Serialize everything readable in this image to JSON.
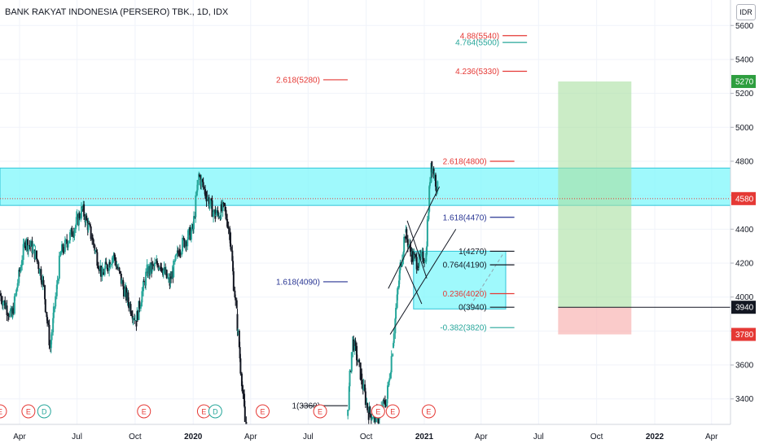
{
  "header": {
    "title": "BANK RAKYAT INDONESIA (PERSERO) TBK., 1D, IDX",
    "currency_badge": "IDR"
  },
  "colors": {
    "up": "#26a69a",
    "down": "#131722",
    "zone": "#7ff7fb",
    "zone_edge": "#30c4d8",
    "target": "#a8dfa0",
    "stop": "#f8b9b8",
    "fib_red": "#e53935",
    "fib_green": "#26a69a",
    "fib_blue": "#283593",
    "price_green": "#2e9e3f",
    "price_red": "#e53935",
    "price_dark": "#131722"
  },
  "chart_data": {
    "type": "candlestick",
    "title": "BANK RAKYAT INDONESIA (PERSERO) TBK., 1D, IDX",
    "ylim": [
      3250,
      5750
    ],
    "x_range": [
      "2019-03-01",
      "2022-05-01"
    ],
    "y_ticks": [
      3400,
      3600,
      3800,
      4000,
      4200,
      4400,
      4600,
      4800,
      5000,
      5200,
      5400,
      5600
    ],
    "x_ticks": [
      {
        "date": "2019-04-01",
        "label": "Apr",
        "bold": false
      },
      {
        "date": "2019-07-01",
        "label": "Jul",
        "bold": false
      },
      {
        "date": "2019-10-01",
        "label": "Oct",
        "bold": false
      },
      {
        "date": "2020-01-01",
        "label": "2020",
        "bold": true
      },
      {
        "date": "2020-04-01",
        "label": "Apr",
        "bold": false
      },
      {
        "date": "2020-07-01",
        "label": "Jul",
        "bold": false
      },
      {
        "date": "2020-10-01",
        "label": "Oct",
        "bold": false
      },
      {
        "date": "2021-01-01",
        "label": "2021",
        "bold": true
      },
      {
        "date": "2021-04-01",
        "label": "Apr",
        "bold": false
      },
      {
        "date": "2021-07-01",
        "label": "Jul",
        "bold": false
      },
      {
        "date": "2021-10-01",
        "label": "Oct",
        "bold": false
      },
      {
        "date": "2022-01-01",
        "label": "2022",
        "bold": true
      },
      {
        "date": "2022-04-01",
        "label": "Apr",
        "bold": false
      }
    ],
    "price_path": [
      [
        "2019-03-01",
        4020
      ],
      [
        "2019-03-20",
        3880
      ],
      [
        "2019-04-10",
        4330
      ],
      [
        "2019-04-24",
        4280
      ],
      [
        "2019-05-08",
        4100
      ],
      [
        "2019-05-20",
        3700
      ],
      [
        "2019-06-05",
        4250
      ],
      [
        "2019-06-25",
        4390
      ],
      [
        "2019-07-10",
        4520
      ],
      [
        "2019-07-25",
        4350
      ],
      [
        "2019-08-10",
        4130
      ],
      [
        "2019-08-28",
        4250
      ],
      [
        "2019-09-15",
        4030
      ],
      [
        "2019-10-03",
        3860
      ],
      [
        "2019-10-20",
        4150
      ],
      [
        "2019-11-10",
        4200
      ],
      [
        "2019-11-25",
        4080
      ],
      [
        "2019-12-10",
        4280
      ],
      [
        "2020-01-01",
        4400
      ],
      [
        "2020-01-10",
        4720
      ],
      [
        "2020-01-22",
        4600
      ],
      [
        "2020-02-05",
        4480
      ],
      [
        "2020-02-20",
        4520
      ],
      [
        "2020-02-28",
        4380
      ],
      [
        "2020-03-10",
        3900
      ],
      [
        "2020-03-25",
        3200
      ]
    ],
    "price_path_2": [
      [
        "2020-09-01",
        3300
      ],
      [
        "2020-09-10",
        3750
      ],
      [
        "2020-09-22",
        3550
      ],
      [
        "2020-10-05",
        3320
      ],
      [
        "2020-10-20",
        3290
      ],
      [
        "2020-11-03",
        3400
      ],
      [
        "2020-11-12",
        3700
      ],
      [
        "2020-11-22",
        4100
      ],
      [
        "2020-12-02",
        4380
      ],
      [
        "2020-12-12",
        4250
      ],
      [
        "2020-12-22",
        4200
      ],
      [
        "2021-01-04",
        4250
      ],
      [
        "2021-01-12",
        4800
      ],
      [
        "2021-01-22",
        4640
      ]
    ],
    "resistance_zone": {
      "from": "2019-03-01",
      "to": "2022-05-01",
      "low": 4540,
      "high": 4760
    },
    "demand_zone": {
      "from": "2020-12-15",
      "to": "2021-05-10",
      "low": 3930,
      "high": 4270
    },
    "target_box": {
      "from": "2021-08-01",
      "to": "2021-11-25",
      "low": 3940,
      "high": 5270
    },
    "stop_box": {
      "from": "2021-08-01",
      "to": "2021-11-25",
      "low": 3780,
      "high": 3940
    },
    "fib_labels": [
      {
        "text": "2.618(5280)",
        "price": 5280,
        "date": "2020-07-25",
        "color": "fib_red"
      },
      {
        "text": "1.618(4090)",
        "price": 4090,
        "date": "2020-07-25",
        "color": "fib_blue"
      },
      {
        "text": "1(3360)",
        "price": 3360,
        "date": "2020-07-25",
        "color": "down"
      },
      {
        "text": "4.88(5540)",
        "price": 5540,
        "date": "2021-05-05",
        "color": "fib_red"
      },
      {
        "text": "4.764(5500)",
        "price": 5500,
        "date": "2021-05-05",
        "color": "fib_green"
      },
      {
        "text": "4.236(5330)",
        "price": 5330,
        "date": "2021-05-05",
        "color": "fib_red"
      },
      {
        "text": "2.618(4800)",
        "price": 4800,
        "date": "2021-04-15",
        "color": "fib_red"
      },
      {
        "text": "1.618(4470)",
        "price": 4470,
        "date": "2021-04-15",
        "color": "fib_blue"
      },
      {
        "text": "1(4270)",
        "price": 4270,
        "date": "2021-04-15",
        "color": "down"
      },
      {
        "text": "0.764(4190)",
        "price": 4190,
        "date": "2021-04-15",
        "color": "down"
      },
      {
        "text": "0.236(4020)",
        "price": 4020,
        "date": "2021-04-15",
        "color": "fib_red"
      },
      {
        "text": "0(3940)",
        "price": 3940,
        "date": "2021-04-15",
        "color": "down"
      },
      {
        "text": "-0.382(3820)",
        "price": 3820,
        "date": "2021-04-15",
        "color": "fib_green"
      }
    ],
    "price_labels": [
      {
        "text": "5270",
        "price": 5270,
        "color": "price_green"
      },
      {
        "text": "4580",
        "price": 4580,
        "color": "price_red"
      },
      {
        "text": "3940",
        "price": 3940,
        "color": "price_dark"
      },
      {
        "text": "3780",
        "price": 3780,
        "color": "price_red"
      }
    ],
    "dotted_price": 4580,
    "events": [
      {
        "date": "2019-03-01",
        "letter": "E"
      },
      {
        "date": "2019-04-15",
        "letter": "E"
      },
      {
        "date": "2019-05-10",
        "letter": "D"
      },
      {
        "date": "2019-10-15",
        "letter": "E"
      },
      {
        "date": "2020-01-18",
        "letter": "E"
      },
      {
        "date": "2020-02-05",
        "letter": "D"
      },
      {
        "date": "2020-04-20",
        "letter": "E"
      },
      {
        "date": "2020-07-20",
        "letter": "E"
      },
      {
        "date": "2020-10-20",
        "letter": "E"
      },
      {
        "date": "2020-11-12",
        "letter": "E"
      },
      {
        "date": "2021-01-08",
        "letter": "E"
      }
    ]
  }
}
